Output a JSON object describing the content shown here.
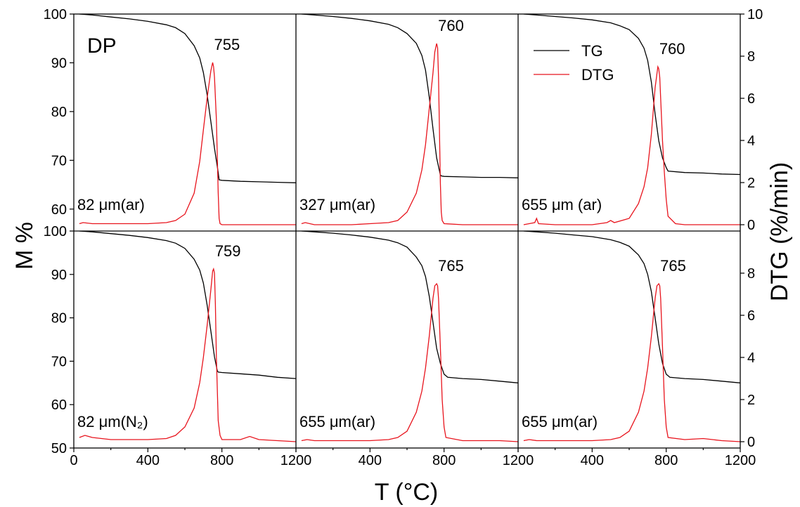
{
  "chart_data": {
    "type": "line",
    "sample_label": "DP",
    "xlabel": "T (°C)",
    "ylabel_left": "M %",
    "ylabel_right": "DTG (%/min)",
    "x_ticks": [
      "0",
      "400",
      "800",
      "1200",
      "400",
      "800",
      "1200",
      "400",
      "800",
      "1200"
    ],
    "y_left_ticks_top": [
      "100",
      "90",
      "80",
      "70",
      "60"
    ],
    "y_left_ticks_bottom": [
      "100",
      "90",
      "80",
      "70",
      "60",
      "50"
    ],
    "y_right_ticks_top": [
      "10",
      "8",
      "6",
      "4",
      "2",
      "0"
    ],
    "y_right_ticks_bottom": [
      "8",
      "6",
      "4",
      "2",
      "0"
    ],
    "xlim": [
      0,
      1200
    ],
    "ylim_top_M": [
      55.5,
      100
    ],
    "ylim_bottom_M": [
      50,
      100
    ],
    "ylim_top_DTG": [
      -0.3,
      10
    ],
    "ylim_bottom_DTG": [
      -0.3,
      10
    ],
    "legend": [
      {
        "name": "TG",
        "color": "#000000"
      },
      {
        "name": "DTG",
        "color": "#e8141d"
      }
    ],
    "panels": [
      {
        "row": 0,
        "col": 0,
        "condition": "82 μm(ar)",
        "peak_label": "755",
        "tg": {
          "x": [
            30,
            100,
            200,
            300,
            400,
            500,
            550,
            600,
            650,
            680,
            700,
            720,
            740,
            760,
            780,
            785,
            800,
            900,
            1000,
            1100,
            1200
          ],
          "y": [
            100,
            99.8,
            99.4,
            99.0,
            98.5,
            97.8,
            97.2,
            96.0,
            93.5,
            91.0,
            88.0,
            83.5,
            78.0,
            72.5,
            67.5,
            66.0,
            65.9,
            65.7,
            65.6,
            65.5,
            65.4
          ]
        },
        "dtg": {
          "x": [
            30,
            50,
            100,
            200,
            300,
            400,
            500,
            550,
            600,
            650,
            680,
            700,
            720,
            740,
            750,
            755,
            760,
            770,
            780,
            785,
            790,
            800,
            900,
            1000,
            1100,
            1200
          ],
          "y": [
            0.05,
            0.1,
            0.05,
            0.05,
            0.05,
            0.05,
            0.1,
            0.2,
            0.5,
            1.5,
            3.0,
            4.5,
            6.0,
            7.3,
            7.7,
            7.5,
            7.0,
            5.0,
            1.5,
            0.3,
            0.05,
            0.0,
            0.0,
            0.0,
            0.0,
            0.0
          ]
        }
      },
      {
        "row": 0,
        "col": 1,
        "condition": "327 μm(ar)",
        "peak_label": "760",
        "tg": {
          "x": [
            30,
            100,
            200,
            300,
            400,
            500,
            550,
            600,
            650,
            680,
            700,
            720,
            740,
            760,
            780,
            785,
            800,
            900,
            1000,
            1100,
            1200
          ],
          "y": [
            100,
            99.8,
            99.5,
            99.1,
            98.6,
            97.9,
            97.2,
            96.0,
            94.0,
            91.5,
            88.5,
            83.0,
            76.5,
            70.5,
            67.0,
            66.8,
            66.7,
            66.6,
            66.5,
            66.5,
            66.4
          ]
        },
        "dtg": {
          "x": [
            30,
            50,
            100,
            200,
            300,
            400,
            500,
            550,
            600,
            650,
            680,
            700,
            720,
            740,
            750,
            760,
            765,
            770,
            780,
            785,
            790,
            800,
            900,
            1000,
            1100,
            1200
          ],
          "y": [
            0.05,
            0.1,
            0.0,
            0.0,
            0.0,
            0.05,
            0.1,
            0.2,
            0.6,
            1.5,
            2.6,
            3.8,
            5.5,
            7.2,
            8.2,
            8.6,
            8.4,
            7.0,
            2.0,
            0.6,
            0.2,
            0.05,
            0.0,
            0.0,
            0.0,
            0.0
          ]
        }
      },
      {
        "row": 0,
        "col": 2,
        "condition": "655 μm (ar)",
        "peak_label": "760",
        "tg": {
          "x": [
            30,
            100,
            200,
            300,
            400,
            500,
            550,
            600,
            650,
            680,
            700,
            720,
            740,
            760,
            780,
            800,
            810,
            900,
            1000,
            1100,
            1200
          ],
          "y": [
            100,
            99.8,
            99.5,
            99.2,
            98.8,
            98.2,
            97.6,
            96.8,
            95.0,
            93.0,
            90.5,
            86.0,
            79.5,
            74.0,
            70.5,
            68.5,
            67.8,
            67.5,
            67.4,
            67.2,
            67.1
          ]
        },
        "dtg": {
          "x": [
            30,
            60,
            90,
            100,
            110,
            200,
            300,
            400,
            480,
            500,
            520,
            600,
            650,
            680,
            700,
            720,
            740,
            755,
            760,
            765,
            770,
            780,
            790,
            800,
            810,
            850,
            900,
            1000,
            1100,
            1200
          ],
          "y": [
            0.0,
            0.05,
            0.1,
            0.3,
            0.05,
            0.0,
            0.0,
            0.0,
            0.1,
            0.2,
            0.1,
            0.3,
            1.0,
            1.8,
            2.7,
            4.3,
            6.5,
            7.5,
            7.4,
            7.0,
            6.0,
            4.0,
            2.5,
            1.2,
            0.4,
            0.05,
            0.0,
            0.0,
            0.0,
            0.0
          ]
        }
      },
      {
        "row": 1,
        "col": 0,
        "condition": "82 μm(N₂)",
        "peak_label": "759",
        "tg": {
          "x": [
            30,
            100,
            200,
            300,
            400,
            500,
            550,
            600,
            650,
            680,
            700,
            720,
            740,
            760,
            775,
            780,
            800,
            900,
            1000,
            1100,
            1200
          ],
          "y": [
            100,
            99.8,
            99.4,
            99.0,
            98.5,
            97.8,
            97.2,
            96.0,
            93.5,
            91.0,
            88.0,
            83.0,
            77.0,
            71.0,
            67.8,
            67.5,
            67.4,
            67.1,
            66.8,
            66.3,
            66.0
          ]
        },
        "dtg": {
          "x": [
            30,
            60,
            100,
            200,
            300,
            400,
            500,
            550,
            600,
            650,
            680,
            700,
            720,
            740,
            750,
            755,
            760,
            765,
            770,
            780,
            790,
            800,
            900,
            950,
            1000,
            1100,
            1200
          ],
          "y": [
            0.2,
            0.3,
            0.2,
            0.1,
            0.1,
            0.1,
            0.15,
            0.3,
            0.7,
            1.6,
            2.8,
            4.0,
            5.5,
            7.2,
            8.1,
            8.2,
            8.0,
            6.5,
            4.0,
            1.0,
            0.3,
            0.1,
            0.1,
            0.25,
            0.1,
            0.05,
            0.0
          ]
        }
      },
      {
        "row": 1,
        "col": 1,
        "condition": "655 μm(ar)",
        "peak_label": "765",
        "tg": {
          "x": [
            30,
            100,
            200,
            300,
            400,
            500,
            550,
            600,
            650,
            680,
            700,
            720,
            740,
            760,
            780,
            800,
            820,
            900,
            1000,
            1100,
            1200
          ],
          "y": [
            100,
            99.8,
            99.5,
            99.1,
            98.6,
            97.9,
            97.3,
            96.3,
            94.0,
            92.0,
            89.5,
            85.0,
            79.0,
            73.0,
            69.5,
            67.0,
            66.3,
            66.0,
            65.8,
            65.4,
            65.0
          ]
        },
        "dtg": {
          "x": [
            30,
            60,
            100,
            200,
            300,
            400,
            500,
            550,
            600,
            650,
            680,
            700,
            720,
            740,
            750,
            760,
            765,
            770,
            780,
            790,
            800,
            810,
            900,
            1000,
            1100,
            1200
          ],
          "y": [
            0.05,
            0.1,
            0.05,
            0.05,
            0.05,
            0.05,
            0.1,
            0.2,
            0.5,
            1.4,
            2.4,
            3.5,
            5.0,
            6.8,
            7.4,
            7.5,
            7.4,
            6.8,
            4.5,
            2.0,
            0.7,
            0.2,
            0.05,
            0.05,
            0.05,
            0.0
          ]
        }
      },
      {
        "row": 1,
        "col": 2,
        "condition": "655 μm(ar)",
        "peak_label": "765",
        "tg": {
          "x": [
            30,
            100,
            200,
            300,
            400,
            500,
            550,
            600,
            650,
            680,
            700,
            720,
            740,
            760,
            780,
            800,
            820,
            900,
            1000,
            1100,
            1200
          ],
          "y": [
            100,
            99.8,
            99.5,
            99.1,
            98.7,
            98.0,
            97.4,
            96.5,
            94.5,
            92.5,
            90.0,
            86.0,
            80.0,
            74.0,
            69.5,
            67.0,
            66.3,
            66.0,
            65.8,
            65.4,
            65.0
          ]
        },
        "dtg": {
          "x": [
            30,
            60,
            100,
            200,
            300,
            400,
            500,
            550,
            600,
            650,
            680,
            700,
            720,
            740,
            750,
            760,
            765,
            770,
            780,
            790,
            800,
            810,
            900,
            1000,
            1100,
            1200
          ],
          "y": [
            0.05,
            0.1,
            0.05,
            0.05,
            0.05,
            0.05,
            0.1,
            0.2,
            0.5,
            1.4,
            2.4,
            3.5,
            5.0,
            6.8,
            7.4,
            7.5,
            7.4,
            6.8,
            4.5,
            2.0,
            0.7,
            0.2,
            0.1,
            0.15,
            0.05,
            0.0
          ]
        }
      }
    ]
  }
}
